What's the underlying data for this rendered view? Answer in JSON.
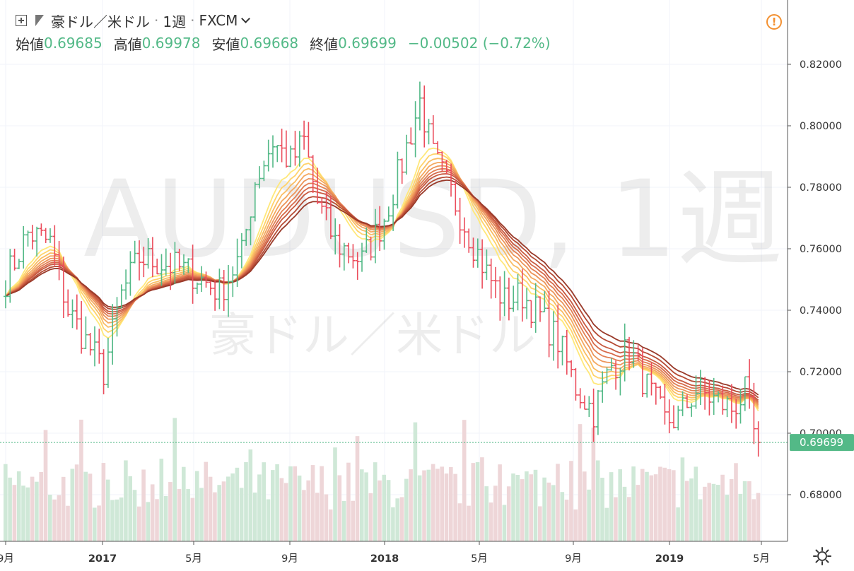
{
  "header": {
    "symbol": "豪ドル／米ドル",
    "separator": "·",
    "interval": "1週",
    "exchange": "FXCM",
    "open_label": "始値",
    "open_value": "0.69685",
    "high_label": "高値",
    "high_value": "0.69978",
    "low_label": "安値",
    "low_value": "0.69668",
    "close_label": "終値",
    "close_value": "0.69699",
    "change": "−0.00502 (−0.72%)"
  },
  "watermark": {
    "main": "AUDUSD, 1週",
    "sub": "豪ドル／米ドル"
  },
  "colors": {
    "up": "#53b987",
    "down": "#eb4d5c",
    "volume_up": "#cfe8d7",
    "volume_down": "#eed6d8",
    "ribbon": [
      "#ffe87a",
      "#ffd36a",
      "#f9bd63",
      "#f4a85f",
      "#ec955a",
      "#e27f53",
      "#d76b4b",
      "#c85a40",
      "#b54a34",
      "#9a3a2a"
    ],
    "price_tag": "#53b987",
    "alert": "#f39030"
  },
  "chart_data": {
    "type": "ohlc",
    "interval": "weekly",
    "ylim": [
      0.665,
      0.825
    ],
    "y_ticks": [
      "0.82000",
      "0.80000",
      "0.78000",
      "0.76000",
      "0.74000",
      "0.72000",
      "0.70000",
      "0.68000"
    ],
    "x_labels": [
      "9月",
      "2017",
      "5月",
      "9月",
      "2018",
      "5月",
      "9月",
      "2019",
      "5月"
    ],
    "last_price": "0.69699",
    "last_value": 0.69699,
    "anchors_close": [
      [
        0,
        0.75
      ],
      [
        5,
        0.765
      ],
      [
        10,
        0.762
      ],
      [
        14,
        0.74
      ],
      [
        18,
        0.73
      ],
      [
        22,
        0.72
      ],
      [
        26,
        0.745
      ],
      [
        30,
        0.757
      ],
      [
        36,
        0.755
      ],
      [
        42,
        0.752
      ],
      [
        48,
        0.746
      ],
      [
        53,
        0.758
      ],
      [
        56,
        0.782
      ],
      [
        60,
        0.795
      ],
      [
        64,
        0.788
      ],
      [
        67,
        0.795
      ],
      [
        70,
        0.775
      ],
      [
        74,
        0.762
      ],
      [
        80,
        0.756
      ],
      [
        85,
        0.77
      ],
      [
        89,
        0.788
      ],
      [
        93,
        0.808
      ],
      [
        96,
        0.79
      ],
      [
        100,
        0.778
      ],
      [
        104,
        0.765
      ],
      [
        108,
        0.752
      ],
      [
        112,
        0.743
      ],
      [
        116,
        0.745
      ],
      [
        120,
        0.738
      ],
      [
        124,
        0.73
      ],
      [
        128,
        0.715
      ],
      [
        132,
        0.707
      ],
      [
        136,
        0.722
      ],
      [
        140,
        0.727
      ],
      [
        144,
        0.715
      ],
      [
        148,
        0.704
      ],
      [
        151,
        0.705
      ],
      [
        155,
        0.714
      ],
      [
        159,
        0.711
      ],
      [
        163,
        0.708
      ],
      [
        166,
        0.713
      ],
      [
        168,
        0.7
      ],
      [
        169,
        0.697
      ]
    ],
    "ema_periods": [
      10,
      12,
      14,
      16,
      18,
      20,
      22,
      24,
      27,
      30
    ],
    "volume_scale": "relative"
  }
}
